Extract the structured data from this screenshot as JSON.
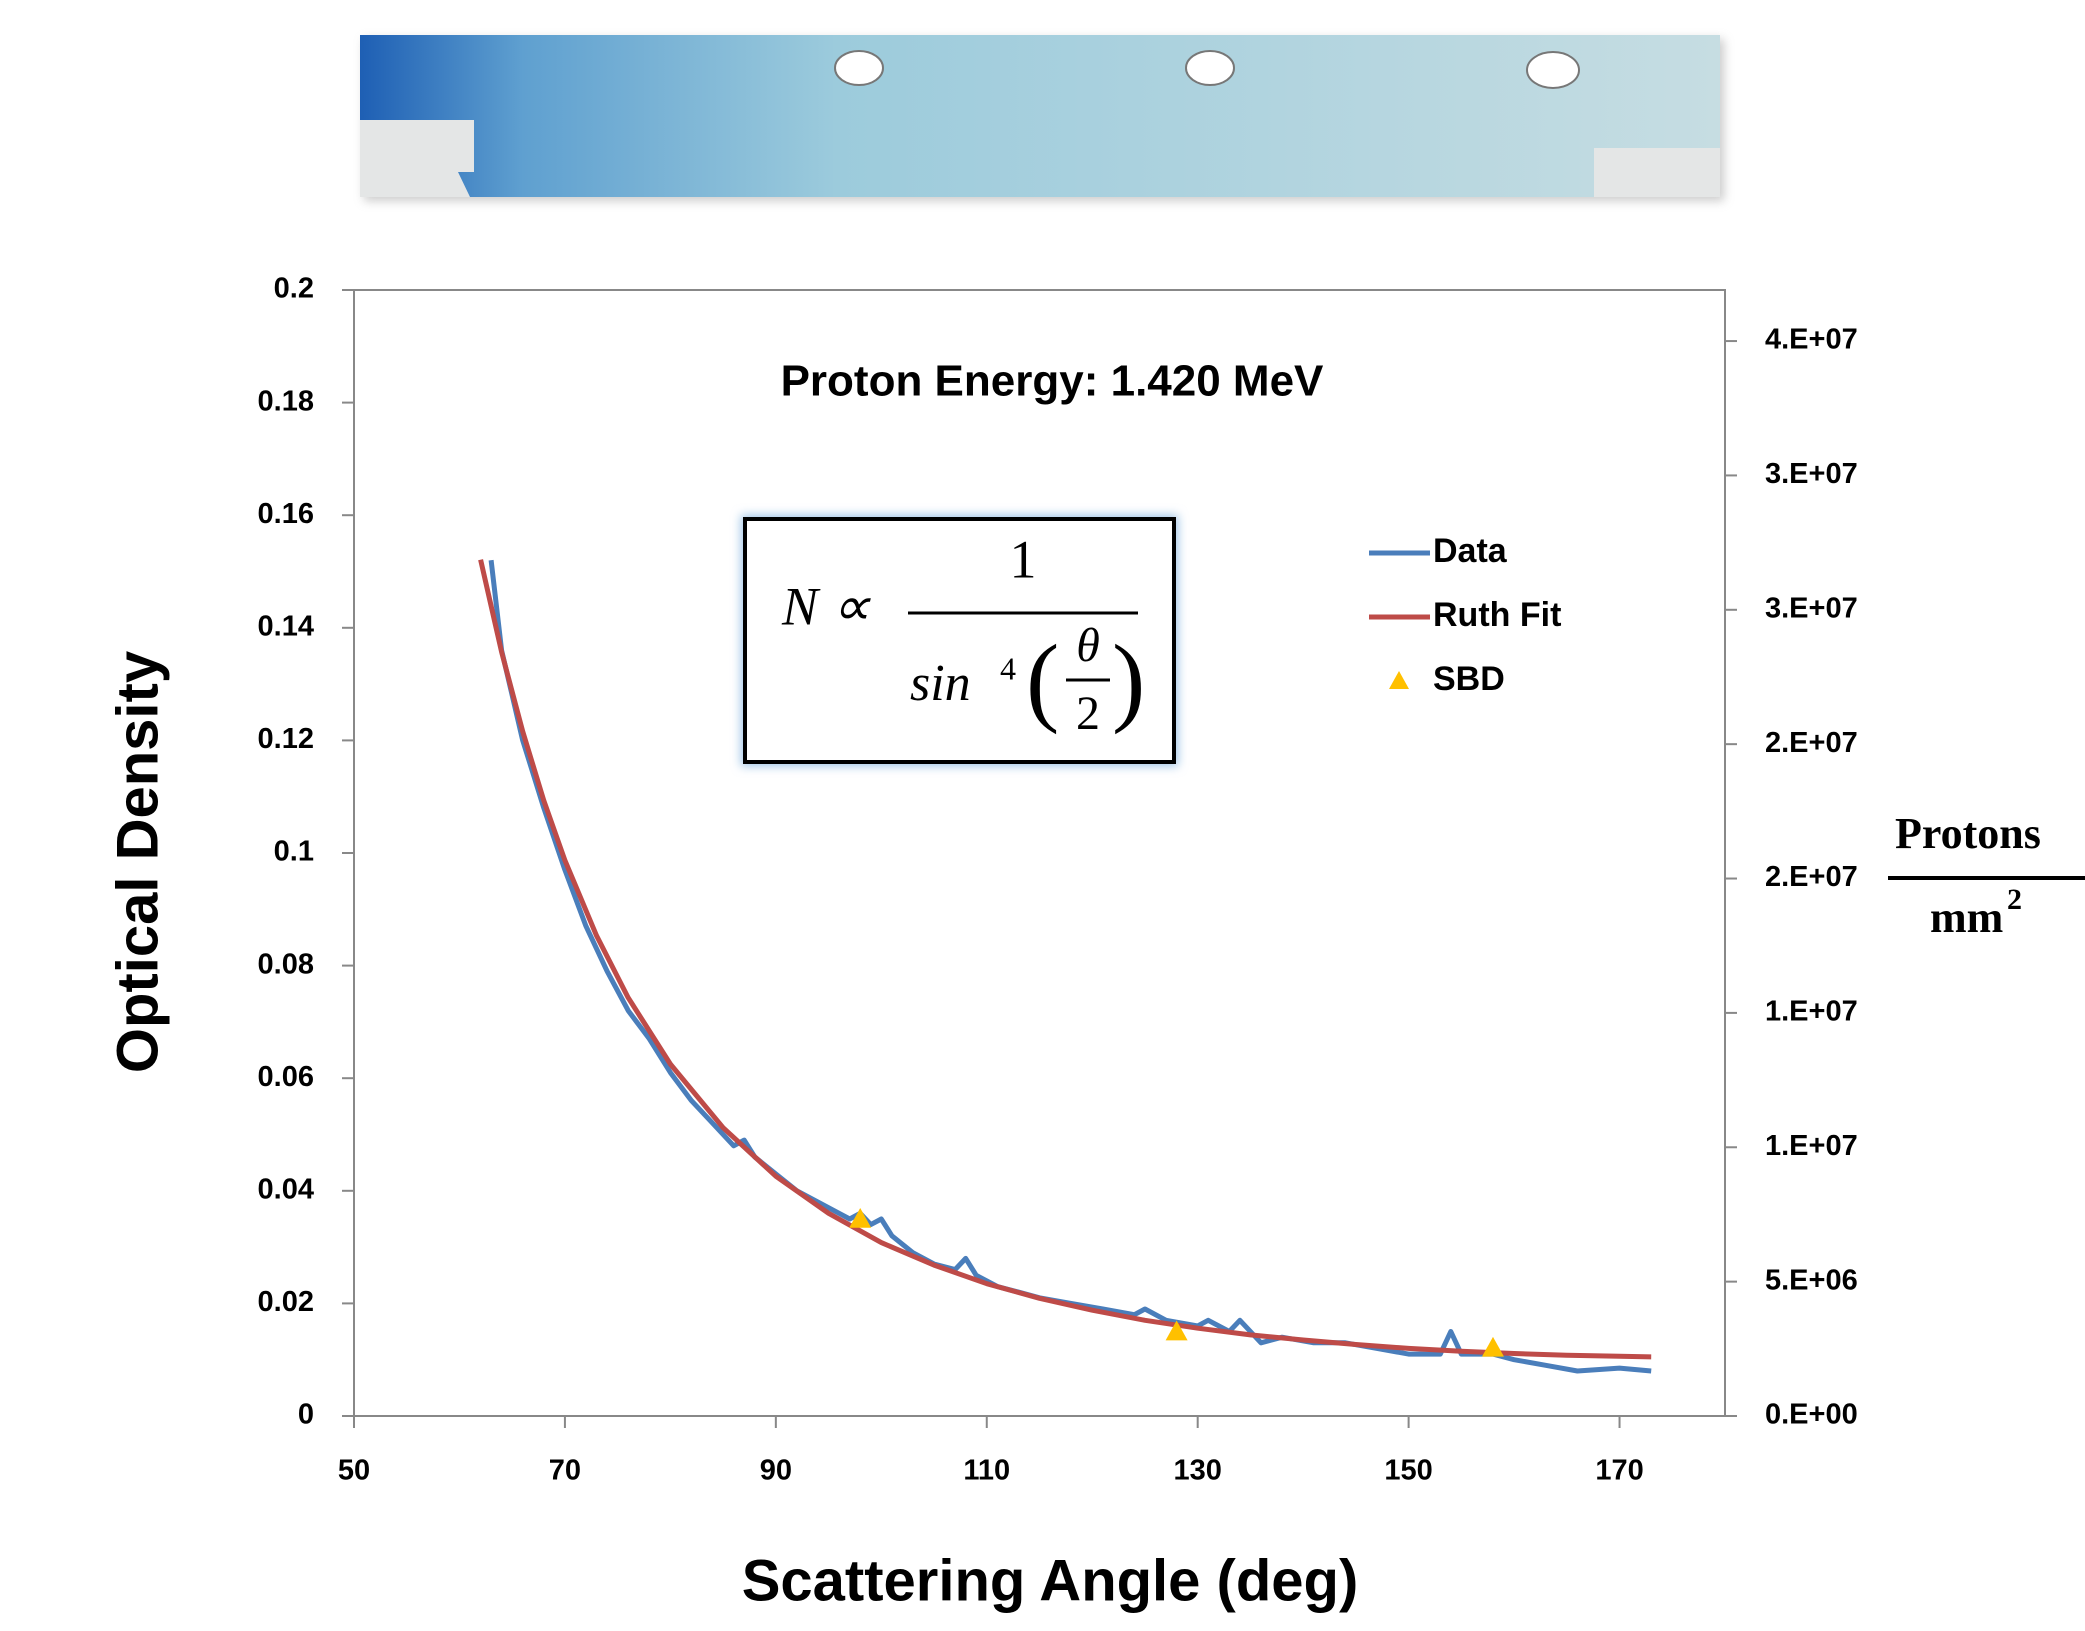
{
  "chart_data": {
    "type": "line",
    "title": "Proton Energy: 1.420 MeV",
    "x_label": "Scattering Angle (deg)",
    "y_label": "Optical Density",
    "y2_label": {
      "numerator": "Protons",
      "denominator": "mm",
      "exponent": "2"
    },
    "equation": {
      "lhs": "N ∝",
      "numerator": "1",
      "func": "sin",
      "power": "4",
      "theta": "θ",
      "two": "2"
    },
    "xlim": [
      50,
      180
    ],
    "xticks": [
      50,
      70,
      90,
      110,
      130,
      150,
      170
    ],
    "ylim": [
      0,
      0.2
    ],
    "yticks": [
      0,
      0.02,
      0.04,
      0.06,
      0.08,
      0.1,
      0.12,
      0.14,
      0.16,
      0.18,
      0.2
    ],
    "y2lim": [
      0,
      41900000
    ],
    "y2ticks": [
      {
        "value": 0,
        "label": "0.E+00"
      },
      {
        "value": 5000000,
        "label": "5.E+06"
      },
      {
        "value": 10000000,
        "label": "1.E+07"
      },
      {
        "value": 15000000,
        "label": "1.E+07"
      },
      {
        "value": 20000000,
        "label": "2.E+07"
      },
      {
        "value": 25000000,
        "label": "2.E+07"
      },
      {
        "value": 30000000,
        "label": "3.E+07"
      },
      {
        "value": 35000000,
        "label": "3.E+07"
      },
      {
        "value": 40000000,
        "label": "4.E+07"
      }
    ],
    "series": [
      {
        "name": "Data",
        "color": "#4a7ebb",
        "kind": "line",
        "x": [
          63,
          64,
          65,
          66,
          67,
          68,
          70,
          72,
          74,
          76,
          78,
          80,
          82,
          84,
          86,
          87,
          88,
          90,
          92,
          94,
          96,
          97,
          98,
          99,
          100,
          101,
          103,
          105,
          107,
          108,
          109,
          111,
          113,
          115,
          118,
          121,
          124,
          125,
          127,
          130,
          131,
          133,
          134,
          136,
          138,
          141,
          144,
          147,
          150,
          153,
          154,
          155,
          158,
          160,
          163,
          166,
          170,
          173
        ],
        "values": [
          0.152,
          0.136,
          0.128,
          0.12,
          0.114,
          0.108,
          0.097,
          0.087,
          0.079,
          0.072,
          0.067,
          0.061,
          0.056,
          0.052,
          0.048,
          0.049,
          0.046,
          0.043,
          0.04,
          0.038,
          0.036,
          0.035,
          0.036,
          0.034,
          0.035,
          0.032,
          0.029,
          0.027,
          0.026,
          0.028,
          0.025,
          0.023,
          0.022,
          0.021,
          0.02,
          0.019,
          0.018,
          0.019,
          0.017,
          0.016,
          0.017,
          0.015,
          0.017,
          0.013,
          0.014,
          0.013,
          0.013,
          0.012,
          0.011,
          0.011,
          0.015,
          0.011,
          0.011,
          0.01,
          0.009,
          0.008,
          0.0085,
          0.008
        ]
      },
      {
        "name": "Ruth Fit",
        "color": "#be4b48",
        "kind": "line",
        "x": [
          62,
          64,
          66,
          68,
          70,
          73,
          76,
          80,
          85,
          90,
          95,
          100,
          105,
          110,
          115,
          120,
          125,
          130,
          135,
          140,
          145,
          150,
          155,
          160,
          165,
          170,
          173
        ],
        "values": [
          0.1521,
          0.1357,
          0.1216,
          0.1093,
          0.0987,
          0.0853,
          0.0743,
          0.0625,
          0.0512,
          0.0426,
          0.036,
          0.0308,
          0.0268,
          0.0235,
          0.0209,
          0.0188,
          0.017,
          0.0156,
          0.0144,
          0.0135,
          0.0127,
          0.012,
          0.0115,
          0.0111,
          0.0108,
          0.0106,
          0.0105
        ]
      },
      {
        "name": "SBD",
        "color": "#ffc000",
        "kind": "marker",
        "x": [
          98,
          128,
          158
        ],
        "values": [
          0.035,
          0.015,
          0.0121
        ]
      }
    ]
  }
}
